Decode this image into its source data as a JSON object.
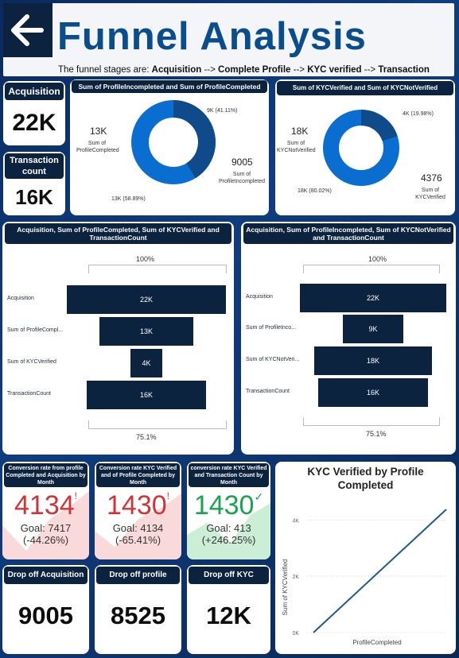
{
  "header": {
    "title": "Funnel Analysis",
    "subtitle_prefix": "The funnel stages are: ",
    "stage1": "Acquisition",
    "arrow1": " --> ",
    "stage2": "Complete Profile",
    "arrow2": " --> ",
    "stage3": "KYC verified",
    "arrow3": " --> ",
    "stage4": "Transaction"
  },
  "cards": {
    "acquisition": {
      "label": "Acquisition",
      "value": "22K"
    },
    "transaction": {
      "label": "Transaction count",
      "value": "16K"
    }
  },
  "donut1": {
    "title": "Sum of ProfileIncompleted and Sum of ProfileCompleted",
    "left_value": "13K",
    "left_label": "Sum of ProfileCompleted",
    "right_value": "9005",
    "right_label": "Sum of ProfileIncompleted",
    "top_slice_label": "9K (41.11%)",
    "bottom_slice_label": "13K (58.89%)",
    "dark_color": "#0f4a8a",
    "light_color": "#0a6ed1"
  },
  "donut2": {
    "title": "Sum of KYCVerified and Sum of KYCNotVerified",
    "left_value": "18K",
    "left_label": "Sum of KYCNotVerified",
    "right_value": "4376",
    "right_label": "Sum of KYCVerified",
    "top_slice_label": "4K (19.98%)",
    "bottom_slice_label": "18K (80.02%)",
    "dark_color": "#0f4a8a",
    "light_color": "#0a6ed1"
  },
  "funnel1": {
    "title": "Acquisition, Sum of ProfileCompleted, Sum of KYCVerified and TransactionCount",
    "top_pct": "100%",
    "bottom_pct": "75.1%",
    "rows": [
      {
        "label": "Acquisition",
        "value": "22K",
        "fraction": 1.0
      },
      {
        "label": "Sum of ProfileCompl...",
        "value": "13K",
        "fraction": 0.59
      },
      {
        "label": "Sum of KYCVerified",
        "value": "4K",
        "fraction": 0.2
      },
      {
        "label": "TransactionCount",
        "value": "16K",
        "fraction": 0.751
      }
    ]
  },
  "funnel2": {
    "title": "Acquisition, Sum of ProfileIncompleted, Sum of KYCNotVerified and TransactionCount",
    "top_pct": "100%",
    "bottom_pct": "75.1%",
    "rows": [
      {
        "label": "Acquisition",
        "value": "22K",
        "fraction": 1.0
      },
      {
        "label": "Sum of ProfileInco...",
        "value": "9K",
        "fraction": 0.41
      },
      {
        "label": "Sum of KYCNotVeri...",
        "value": "18K",
        "fraction": 0.8
      },
      {
        "label": "TransactionCount",
        "value": "16K",
        "fraction": 0.751
      }
    ]
  },
  "kpi1": {
    "title": "Conversion rate from profile Completed and Acquisition by Month",
    "value": "4134",
    "mark": "!",
    "goal": "Goal: 7417",
    "change": "(-44.26%)",
    "color": "#d13438"
  },
  "kpi2": {
    "title": "Conversion rate KYC Verified and of Profile Completed by Month",
    "value": "1430",
    "mark": "!",
    "goal": "Goal: 4134",
    "change": "(-65.41%)",
    "color": "#d13438"
  },
  "kpi3": {
    "title": "conversion rate KYC Verified and Transaction Count by Month",
    "value": "1430",
    "mark": "✓",
    "goal": "Goal: 413",
    "change": "(+246.25%)",
    "color": "#1aa350"
  },
  "dropoff": {
    "acq": {
      "label": "Drop off Acquisition",
      "value": "9005"
    },
    "profile": {
      "label": "Drop off profile",
      "value": "8525"
    },
    "kyc": {
      "label": "Drop off KYC",
      "value": "12K"
    }
  },
  "chart_data": {
    "type": "line",
    "title": "KYC Verified by Profile Completed",
    "xlabel": "ProfileCompleted",
    "ylabel": "Sum of KYCVerified",
    "yticks": [
      "4K",
      "2K",
      "0K"
    ],
    "ylim": [
      0,
      4800
    ],
    "series": [
      {
        "x": [
          0,
          13000
        ],
        "values": [
          0,
          4376
        ]
      }
    ],
    "line_color": "#1f5a8a"
  }
}
